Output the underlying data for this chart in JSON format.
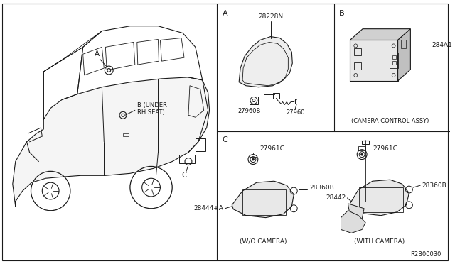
{
  "bg_color": "#ffffff",
  "line_color": "#1a1a1a",
  "diagram_ref": "R2B00030",
  "labels": {
    "A_part": "28228N",
    "A_sub1": "27960B",
    "A_sub2": "27960",
    "B_part": "284A1",
    "B_caption": "(CAMERA CONTROL ASSY)",
    "C_left_part1": "27961G",
    "C_left_part2": "28360B",
    "C_left_part3": "28444+A",
    "C_left_caption": "(W/O CAMERA)",
    "C_right_part1": "27961G",
    "C_right_part2": "28360B",
    "C_right_part3": "28442",
    "C_right_caption": "(WITH CAMERA)"
  },
  "section_A": "A",
  "section_B": "B",
  "section_C": "C",
  "car_A": "A",
  "car_B1": "B (UNDER",
  "car_B2": "RH SEAT)",
  "car_C": "C"
}
